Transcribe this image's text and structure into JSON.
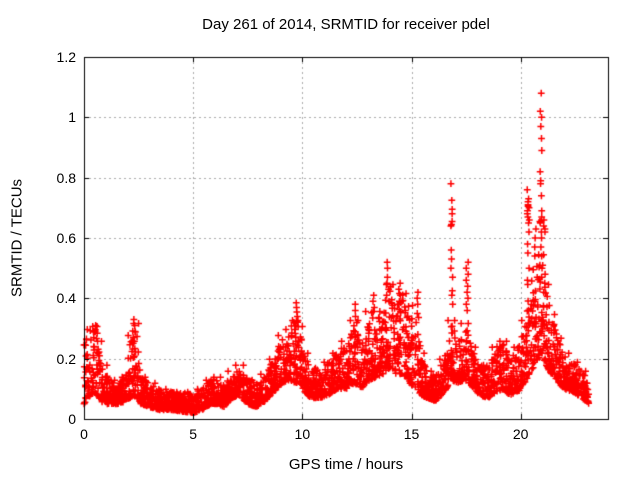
{
  "chart_data": {
    "type": "scatter",
    "title": "Day 261 of 2014, SRMTID for receiver pdel",
    "xlabel": "GPS time / hours",
    "ylabel": "SRMTID / TECUs",
    "xlim": [
      0,
      24
    ],
    "ylim": [
      0,
      1.2
    ],
    "xticks": [
      0,
      5,
      10,
      15,
      20
    ],
    "xtick_labels": [
      "0",
      "5",
      "10",
      "15",
      "20"
    ],
    "yticks": [
      0,
      0.2,
      0.4,
      0.6,
      0.8,
      1.0,
      1.2
    ],
    "ytick_labels": [
      "0",
      "0.2",
      "0.4",
      "0.6",
      "0.8",
      "1",
      "1.2"
    ],
    "grid": true,
    "legend": "none",
    "marker": "plus",
    "colors": {
      "marker": "#ff0000",
      "grid": "#aaaaaa",
      "border": "#000000",
      "text": "#000000",
      "background": "#ffffff"
    },
    "series": [
      {
        "name": "SRMTID",
        "color": "#ff0000",
        "points_per_hour": 120,
        "envelope": [
          [
            0.0,
            0.05,
            0.26
          ],
          [
            0.3,
            0.08,
            0.3
          ],
          [
            0.5,
            0.09,
            0.31
          ],
          [
            0.7,
            0.07,
            0.26
          ],
          [
            0.9,
            0.05,
            0.18
          ],
          [
            1.2,
            0.05,
            0.13
          ],
          [
            1.6,
            0.05,
            0.12
          ],
          [
            1.9,
            0.06,
            0.14
          ],
          [
            2.15,
            0.07,
            0.28
          ],
          [
            2.4,
            0.07,
            0.32
          ],
          [
            2.6,
            0.05,
            0.14
          ],
          [
            3.0,
            0.04,
            0.12
          ],
          [
            3.5,
            0.03,
            0.1
          ],
          [
            4.0,
            0.03,
            0.09
          ],
          [
            4.5,
            0.025,
            0.085
          ],
          [
            5.0,
            0.02,
            0.09
          ],
          [
            5.4,
            0.03,
            0.1
          ],
          [
            5.8,
            0.05,
            0.13
          ],
          [
            6.1,
            0.05,
            0.14
          ],
          [
            6.4,
            0.04,
            0.11
          ],
          [
            6.8,
            0.07,
            0.16
          ],
          [
            7.1,
            0.08,
            0.18
          ],
          [
            7.5,
            0.05,
            0.13
          ],
          [
            7.9,
            0.04,
            0.12
          ],
          [
            8.3,
            0.06,
            0.15
          ],
          [
            8.7,
            0.09,
            0.2
          ],
          [
            9.1,
            0.12,
            0.28
          ],
          [
            9.4,
            0.13,
            0.3
          ],
          [
            9.7,
            0.12,
            0.33
          ],
          [
            9.9,
            0.12,
            0.31
          ],
          [
            10.1,
            0.09,
            0.22
          ],
          [
            10.4,
            0.07,
            0.17
          ],
          [
            10.8,
            0.07,
            0.16
          ],
          [
            11.2,
            0.08,
            0.19
          ],
          [
            11.6,
            0.1,
            0.22
          ],
          [
            12.0,
            0.1,
            0.26
          ],
          [
            12.4,
            0.12,
            0.33
          ],
          [
            12.7,
            0.1,
            0.24
          ],
          [
            13.1,
            0.13,
            0.36
          ],
          [
            13.4,
            0.14,
            0.33
          ],
          [
            13.7,
            0.15,
            0.36
          ],
          [
            14.0,
            0.17,
            0.45
          ],
          [
            14.3,
            0.15,
            0.38
          ],
          [
            14.6,
            0.15,
            0.42
          ],
          [
            14.9,
            0.12,
            0.38
          ],
          [
            15.2,
            0.1,
            0.34
          ],
          [
            15.45,
            0.08,
            0.22
          ],
          [
            15.7,
            0.07,
            0.16
          ],
          [
            16.1,
            0.06,
            0.14
          ],
          [
            16.5,
            0.09,
            0.2
          ],
          [
            16.85,
            0.13,
            0.33
          ],
          [
            17.1,
            0.12,
            0.26
          ],
          [
            17.45,
            0.13,
            0.32
          ],
          [
            17.75,
            0.11,
            0.24
          ],
          [
            18.1,
            0.08,
            0.18
          ],
          [
            18.5,
            0.07,
            0.18
          ],
          [
            18.9,
            0.09,
            0.24
          ],
          [
            19.2,
            0.1,
            0.26
          ],
          [
            19.5,
            0.08,
            0.2
          ],
          [
            19.9,
            0.09,
            0.24
          ],
          [
            20.2,
            0.12,
            0.33
          ],
          [
            20.45,
            0.16,
            0.45
          ],
          [
            20.7,
            0.18,
            0.5
          ],
          [
            20.95,
            0.22,
            0.55
          ],
          [
            21.15,
            0.18,
            0.45
          ],
          [
            21.4,
            0.15,
            0.35
          ],
          [
            21.7,
            0.12,
            0.27
          ],
          [
            22.0,
            0.1,
            0.22
          ],
          [
            22.4,
            0.09,
            0.19
          ],
          [
            22.8,
            0.07,
            0.16
          ],
          [
            23.15,
            0.05,
            0.12
          ]
        ],
        "spikes": [
          {
            "x": 0.5,
            "ys": [
              0.31,
              0.29
            ]
          },
          {
            "x": 2.3,
            "ys": [
              0.33,
              0.31,
              0.29,
              0.27
            ]
          },
          {
            "x": 9.75,
            "ys": [
              0.385,
              0.37,
              0.355,
              0.34,
              0.325,
              0.31
            ]
          },
          {
            "x": 12.45,
            "ys": [
              0.38,
              0.36,
              0.34,
              0.32
            ]
          },
          {
            "x": 13.25,
            "ys": [
              0.41,
              0.39,
              0.37
            ]
          },
          {
            "x": 13.9,
            "ys": [
              0.52,
              0.5,
              0.47,
              0.45,
              0.43,
              0.41
            ]
          },
          {
            "x": 14.45,
            "ys": [
              0.45,
              0.43,
              0.41,
              0.39
            ]
          },
          {
            "x": 15.25,
            "ys": [
              0.42,
              0.4,
              0.38,
              0.35
            ]
          },
          {
            "x": 16.85,
            "ys": [
              0.78,
              0.725,
              0.695,
              0.68,
              0.655,
              0.645,
              0.64,
              0.56,
              0.53,
              0.5,
              0.47,
              0.425,
              0.41,
              0.38
            ]
          },
          {
            "x": 17.55,
            "ys": [
              0.52,
              0.5,
              0.48,
              0.46,
              0.44,
              0.42,
              0.4,
              0.38,
              0.36
            ]
          },
          {
            "x": 20.35,
            "ys": [
              0.76,
              0.73,
              0.72,
              0.71,
              0.705,
              0.7,
              0.69,
              0.68,
              0.67,
              0.66,
              0.65,
              0.62,
              0.58,
              0.55,
              0.5,
              0.46
            ]
          },
          {
            "x": 20.65,
            "ys": [
              0.63,
              0.6,
              0.57,
              0.54
            ]
          },
          {
            "x": 20.93,
            "ys": [
              1.08,
              1.02,
              1.0,
              0.97,
              0.93,
              0.89,
              0.82,
              0.79,
              0.78,
              0.74,
              0.69,
              0.67,
              0.66,
              0.655,
              0.65,
              0.62,
              0.6,
              0.57,
              0.54,
              0.5,
              0.47
            ]
          },
          {
            "x": 21.1,
            "ys": [
              0.66,
              0.64,
              0.63,
              0.62,
              0.48,
              0.45,
              0.42
            ]
          }
        ]
      }
    ]
  }
}
